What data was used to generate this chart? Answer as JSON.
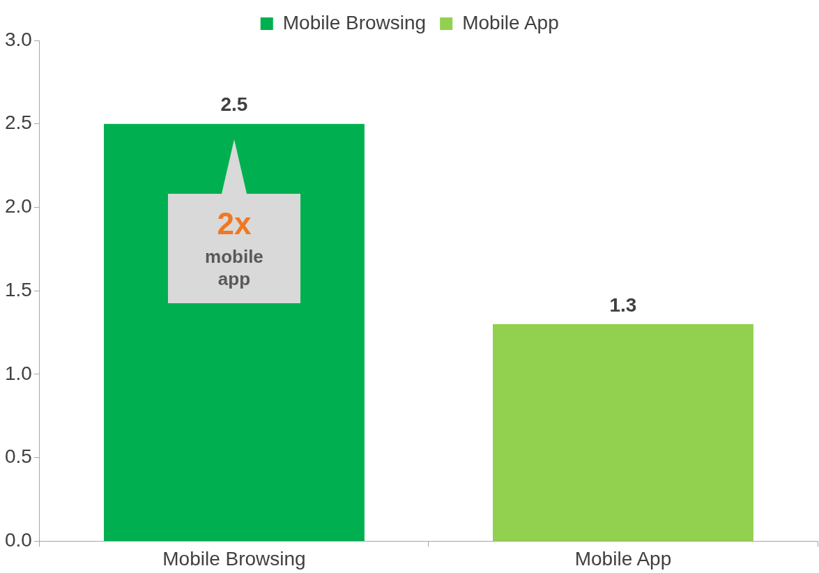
{
  "chart_data": {
    "type": "bar",
    "categories": [
      "Mobile Browsing",
      "Mobile App"
    ],
    "series": [
      {
        "name": "Mobile Browsing",
        "color": "#00b050",
        "values": [
          2.5,
          null
        ]
      },
      {
        "name": "Mobile App",
        "color": "#92d050",
        "values": [
          null,
          1.3
        ]
      }
    ],
    "ylim": [
      0,
      3
    ],
    "yticks": [
      {
        "value": 0,
        "label": "0.0"
      },
      {
        "value": 0.5,
        "label": "0.5"
      },
      {
        "value": 1,
        "label": "1.0"
      },
      {
        "value": 1.5,
        "label": "1.5"
      },
      {
        "value": 2,
        "label": "2.0"
      },
      {
        "value": 2.5,
        "label": "2.5"
      },
      {
        "value": 3,
        "label": "3.0"
      }
    ],
    "data_labels": true,
    "legend": "top",
    "grid": false,
    "annotations": [
      "2x",
      "mobile app"
    ]
  }
}
